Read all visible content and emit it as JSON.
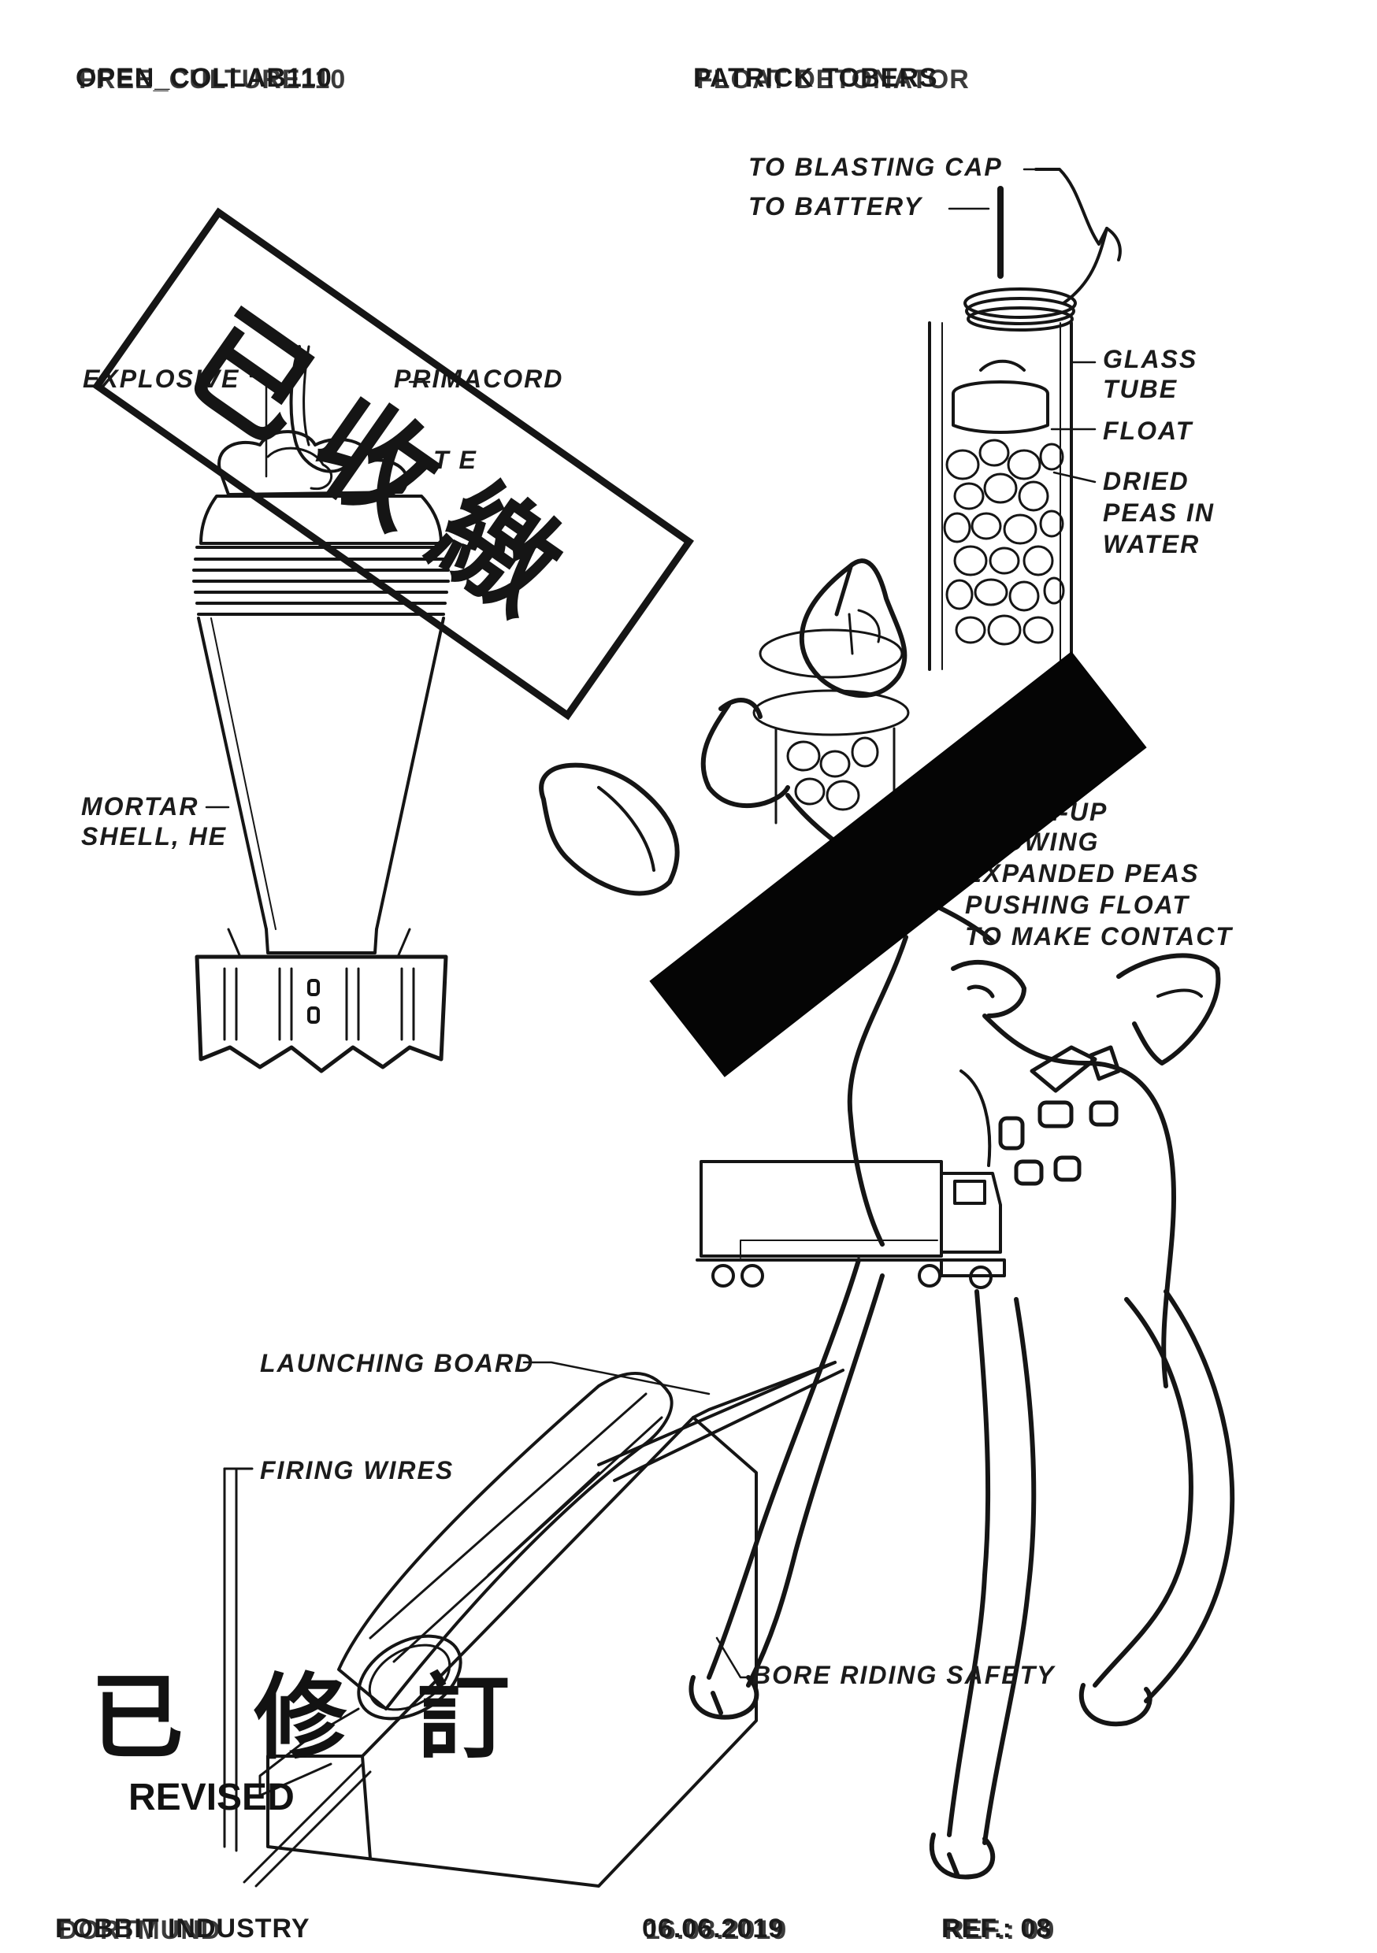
{
  "header": {
    "left_text_a": "OPEN_COLLAB110",
    "left_text_b": "FREE_CULTURE110",
    "right_text_a": "PATRICK TOBERS",
    "right_text_b": "FLOAT DETONATOR"
  },
  "footer": {
    "left_text_a": "FOBBIT INDUSTRY",
    "left_text_b": "DORTMUND",
    "date_a": "06.06.2019",
    "date_b": "16.08.2019",
    "ref_a": "REF.: 08",
    "ref_b": "REF.: 09"
  },
  "stamps": {
    "seized_cn": "已收繳",
    "revised_cn": "已 修 訂",
    "revised_en": "REVISED"
  },
  "labels": {
    "to_blasting_cap": "TO BLASTING CAP",
    "to_battery": "TO BATTERY",
    "glass_tube": [
      "GLASS",
      "TUBE"
    ],
    "float": "FLOAT",
    "dried_peas": [
      "DRIED",
      "PEAS IN",
      "WATER"
    ],
    "explosive": "EXPLOSIVE",
    "primacord": "PRIMACORD",
    "tnt_fragment": "T  E",
    "mortar_shell": [
      "MORTAR",
      "SHELL, HE"
    ],
    "closeup": [
      "CLOSE-UP",
      "SHOWING",
      "EXPANDED PEAS",
      "PUSHING FLOAT",
      "TO MAKE CONTACT"
    ],
    "launching_board": "LAUNCHING BOARD",
    "firing_wires": "FIRING WIRES",
    "bore_riding_safety": "BORE RIDING SAFETY"
  },
  "icons": {
    "mortar": "mortar-shell-illustration",
    "tube": "glass-tube-detonator-illustration",
    "deer": "cartoon-deer-illustration",
    "truck": "semi-truck-illustration",
    "launcher": "rocket-launcher-illustration"
  },
  "colors": {
    "ink": "#151515",
    "paper": "#ffffff",
    "redaction": "#050505"
  }
}
